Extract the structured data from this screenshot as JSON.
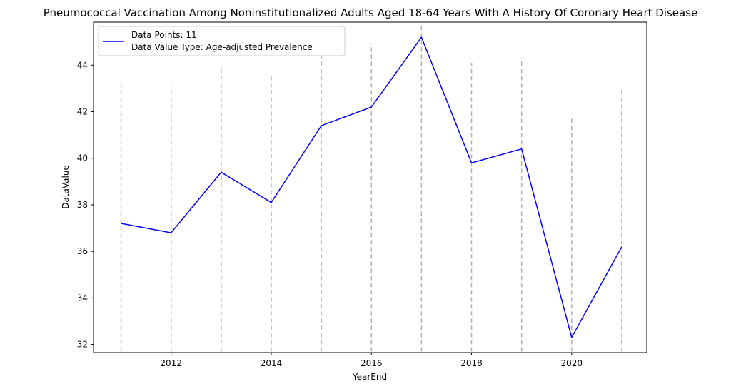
{
  "chart_data": {
    "type": "line",
    "title": "Pneumococcal Vaccination Among Noninstitutionalized Adults Aged 18-64 Years With A History Of Coronary Heart Disease",
    "xlabel": "YearEnd",
    "ylabel": "DataValue",
    "x": [
      2011,
      2012,
      2013,
      2014,
      2015,
      2016,
      2017,
      2018,
      2019,
      2020,
      2021
    ],
    "series": [
      {
        "values": [
          37.2,
          36.8,
          39.4,
          38.1,
          41.4,
          42.2,
          45.2,
          39.8,
          40.4,
          32.3,
          36.2
        ],
        "color": "#0000ff"
      }
    ],
    "error_bar_upper": [
      43.3,
      43.1,
      44.0,
      43.6,
      44.6,
      44.9,
      45.8,
      44.1,
      44.3,
      41.7,
      43.0
    ],
    "error_bar_lower": [
      31.7,
      31.7,
      31.7,
      31.7,
      31.7,
      31.7,
      31.7,
      31.7,
      31.7,
      31.7,
      31.7
    ],
    "error_bar_color": "#b0b0b0",
    "x_ticks": [
      2012,
      2014,
      2016,
      2018,
      2020
    ],
    "y_ticks": [
      32,
      34,
      36,
      38,
      40,
      42,
      44
    ],
    "xlim": [
      2010.45,
      2021.5
    ],
    "ylim": [
      31.65,
      45.85
    ],
    "grid": false,
    "legend": {
      "position": "top-left",
      "lines": [
        "Data Points: 11",
        "Data Value Type: Age-adjusted Prevalence"
      ]
    }
  }
}
